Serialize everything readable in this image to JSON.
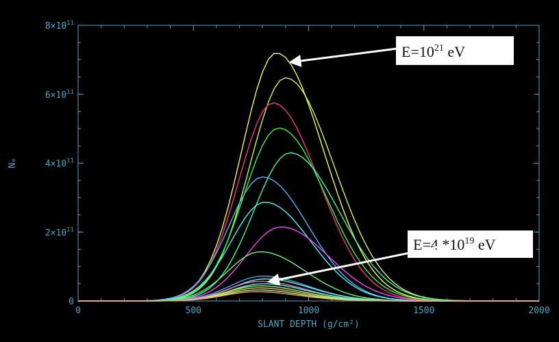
{
  "chart_data": {
    "type": "line",
    "title": "",
    "xlabel": "SLANT DEPTH (g/cm²)",
    "ylabel": "Nₑ",
    "xlim": [
      0,
      2000
    ],
    "ylim": [
      0,
      800000000000
    ],
    "x_ticks": [
      0,
      500,
      1000,
      1500,
      2000
    ],
    "x_tick_labels": [
      "0",
      "500",
      "1000",
      "1500",
      "2000"
    ],
    "y_ticks": [
      0,
      200000000000,
      400000000000,
      600000000000,
      800000000000
    ],
    "y_tick_labels": [
      {
        "mantissa": "0",
        "exponent": ""
      },
      {
        "mantissa": "2×10",
        "exponent": "11"
      },
      {
        "mantissa": "4×10",
        "exponent": "11"
      },
      {
        "mantissa": "6×10",
        "exponent": "11"
      },
      {
        "mantissa": "8×10",
        "exponent": "11"
      }
    ],
    "grid": false,
    "x_sample_step": 25,
    "series": [
      {
        "color": "#ffff33",
        "peak_x": 860,
        "peak_y": 720000000000,
        "sigma_left": 150,
        "sigma_right": 205
      },
      {
        "color": "#ccff44",
        "peak_x": 900,
        "peak_y": 648000000000,
        "sigma_left": 155,
        "sigma_right": 210
      },
      {
        "color": "#ff3388",
        "peak_x": 845,
        "peak_y": 575000000000,
        "sigma_left": 148,
        "sigma_right": 200
      },
      {
        "color": "#33ff33",
        "peak_x": 870,
        "peak_y": 502000000000,
        "sigma_left": 152,
        "sigma_right": 205
      },
      {
        "color": "#33ffaa",
        "peak_x": 920,
        "peak_y": 430000000000,
        "sigma_left": 158,
        "sigma_right": 212
      },
      {
        "color": "#44bbff",
        "peak_x": 800,
        "peak_y": 360000000000,
        "sigma_left": 145,
        "sigma_right": 198
      },
      {
        "color": "#33ffff",
        "peak_x": 810,
        "peak_y": 287000000000,
        "sigma_left": 145,
        "sigma_right": 198
      },
      {
        "color": "#ff44ff",
        "peak_x": 880,
        "peak_y": 215000000000,
        "sigma_left": 152,
        "sigma_right": 205
      },
      {
        "color": "#66ff66",
        "peak_x": 790,
        "peak_y": 143000000000,
        "sigma_left": 140,
        "sigma_right": 195
      },
      {
        "color": "#33aaff",
        "peak_x": 800,
        "peak_y": 72000000000,
        "sigma_left": 140,
        "sigma_right": 195
      },
      {
        "color": "#66ffcc",
        "peak_x": 810,
        "peak_y": 64000000000,
        "sigma_left": 140,
        "sigma_right": 195
      },
      {
        "color": "#ff66cc",
        "peak_x": 790,
        "peak_y": 57000000000,
        "sigma_left": 138,
        "sigma_right": 192
      },
      {
        "color": "#33ffff",
        "peak_x": 800,
        "peak_y": 50000000000,
        "sigma_left": 138,
        "sigma_right": 192
      },
      {
        "color": "#aaff44",
        "peak_x": 785,
        "peak_y": 44000000000,
        "sigma_left": 136,
        "sigma_right": 190
      },
      {
        "color": "#ffcc33",
        "peak_x": 780,
        "peak_y": 38000000000,
        "sigma_left": 135,
        "sigma_right": 188
      },
      {
        "color": "#99ff99",
        "peak_x": 775,
        "peak_y": 32000000000,
        "sigma_left": 134,
        "sigma_right": 186
      },
      {
        "color": "#ff9966",
        "peak_x": 770,
        "peak_y": 27000000000,
        "sigma_left": 133,
        "sigma_right": 184
      }
    ],
    "annotations": [
      {
        "base": "E=10",
        "exponent": "21",
        "unit": " eV",
        "target_x": 860,
        "target_y": 720000000000
      },
      {
        "base": "E=4 *10",
        "exponent": "19",
        "unit": " eV",
        "target_x": 790,
        "target_y": 27000000000
      }
    ],
    "colors": {
      "background": "#000000",
      "axis": "#4aa8c8",
      "label_box": "#ffffff",
      "arrow": "#ffffff"
    }
  }
}
